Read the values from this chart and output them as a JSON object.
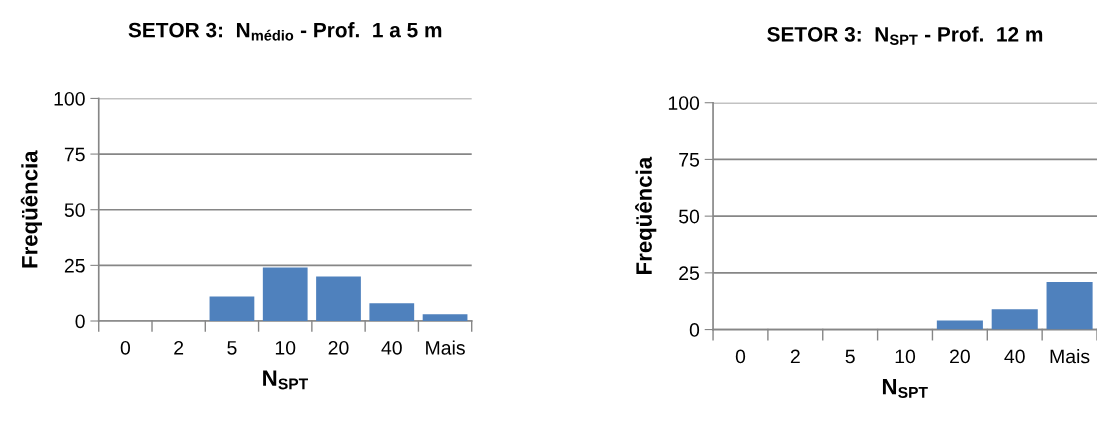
{
  "chart_data": [
    {
      "type": "bar",
      "title": "SETOR 3:  N$_{médio}$ - Prof.  1 a 5 m",
      "xlabel": "N$_{SPT}$",
      "ylabel": "Freqüência",
      "categories": [
        "0",
        "2",
        "5",
        "10",
        "20",
        "40",
        "Mais"
      ],
      "values": [
        0,
        0,
        11,
        24,
        20,
        8,
        3
      ],
      "color": "#4f81bd",
      "ylim": [
        0,
        100
      ],
      "yticks": [
        0,
        25,
        50,
        75,
        100
      ],
      "grid": "y",
      "legend": false
    },
    {
      "type": "bar",
      "title": "SETOR 3:  N$_{SPT}$ - Prof.  12 m",
      "xlabel": "N$_{SPT}$",
      "ylabel": "Freqüência",
      "categories": [
        "0",
        "2",
        "5",
        "10",
        "20",
        "40",
        "Mais"
      ],
      "values": [
        0,
        0,
        0,
        0,
        4,
        9,
        21
      ],
      "color": "#4f81bd",
      "ylim": [
        0,
        100
      ],
      "yticks": [
        0,
        25,
        50,
        75,
        100
      ],
      "grid": "y",
      "legend": false
    }
  ]
}
